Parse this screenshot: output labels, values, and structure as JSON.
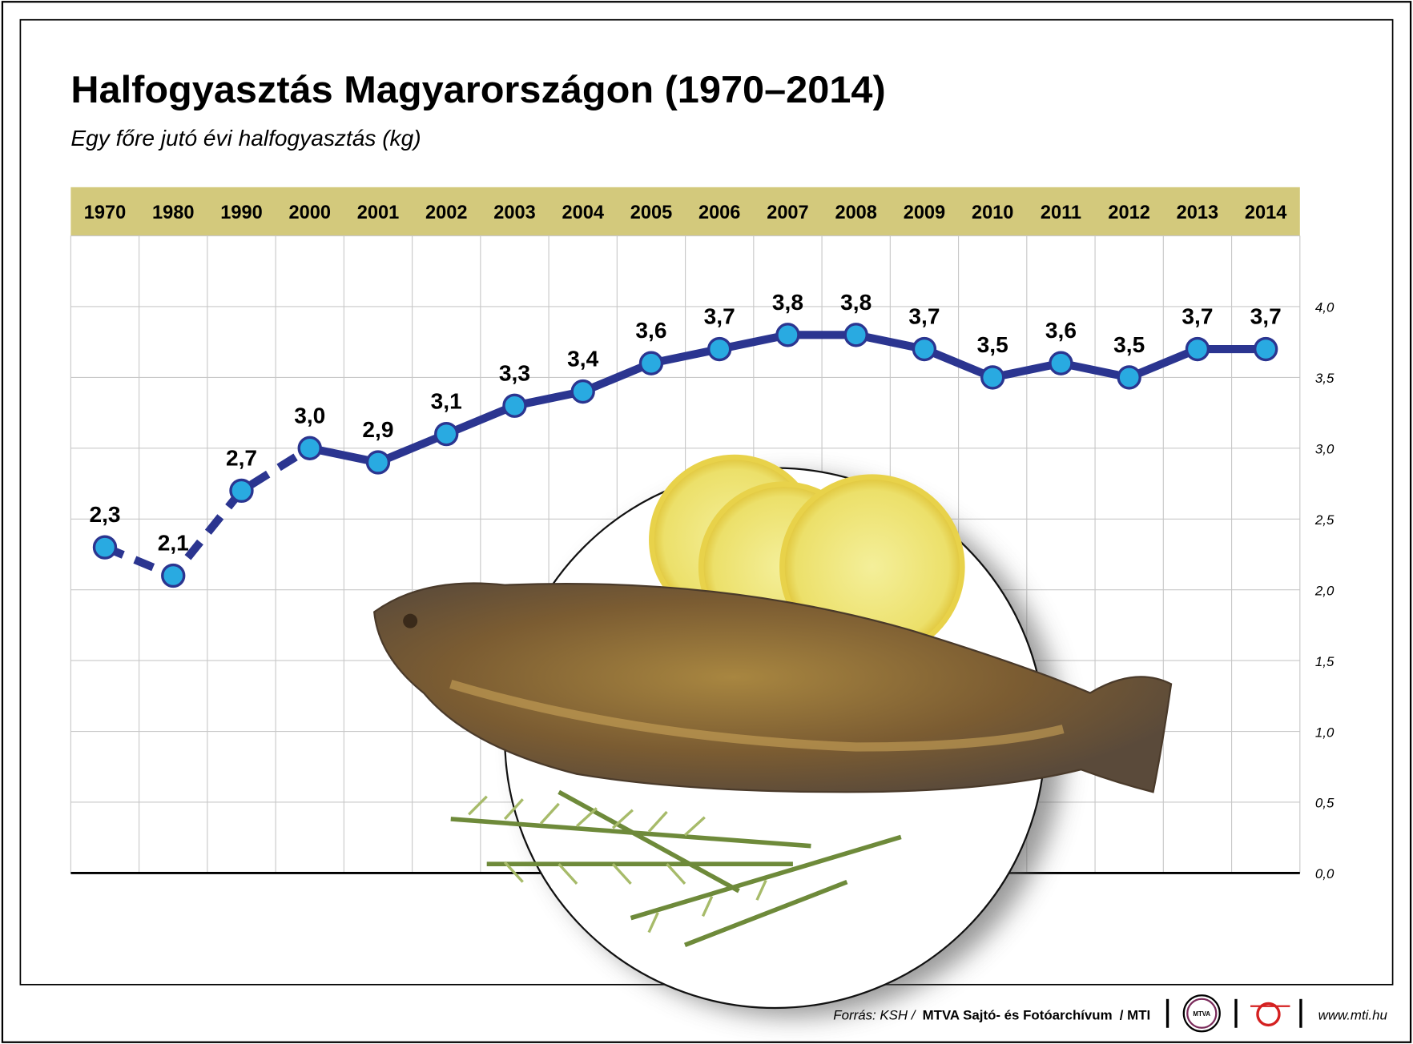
{
  "chart_data": {
    "type": "line",
    "title": "Halfogyasztás Magyarországon (1970–2014)",
    "subtitle": "Egy főre jutó évi halfogyasztás (kg)",
    "categories": [
      "1970",
      "1980",
      "1990",
      "2000",
      "2001",
      "2002",
      "2003",
      "2004",
      "2005",
      "2006",
      "2007",
      "2008",
      "2009",
      "2010",
      "2011",
      "2012",
      "2013",
      "2014"
    ],
    "series": [
      {
        "color": "#2b3590",
        "marker_color": "#29aae1",
        "values": [
          2.3,
          2.1,
          2.7,
          3.0,
          2.9,
          3.1,
          3.3,
          3.4,
          3.6,
          3.7,
          3.8,
          3.8,
          3.7,
          3.5,
          3.6,
          3.5,
          3.7,
          3.7
        ],
        "value_labels": [
          "2,3",
          "2,1",
          "2,7",
          "3,0",
          "2,9",
          "3,1",
          "3,3",
          "3,4",
          "3,6",
          "3,7",
          "3,8",
          "3,8",
          "3,7",
          "3,5",
          "3,6",
          "3,5",
          "3,7",
          "3,7"
        ]
      }
    ],
    "dashed_segments": 3,
    "ylim": [
      0,
      4.5
    ],
    "yticks": [
      {
        "value": 0,
        "label": "0,0"
      },
      {
        "value": 0.5,
        "label": "0,5"
      },
      {
        "value": 1,
        "label": "1,0"
      },
      {
        "value": 1.5,
        "label": "1,5"
      },
      {
        "value": 2,
        "label": "2,0"
      },
      {
        "value": 2.5,
        "label": "2,5"
      },
      {
        "value": 3,
        "label": "3,0"
      },
      {
        "value": 3.5,
        "label": "3,5"
      },
      {
        "value": 4,
        "label": "4,0"
      }
    ],
    "grid": true
  },
  "footer": {
    "source": [
      "Forrás: KSH /",
      "MTVA Sajtó- és Fotóarchívum",
      "/ MTI"
    ],
    "logo": "MTVA",
    "website": "www.mti.hu"
  }
}
